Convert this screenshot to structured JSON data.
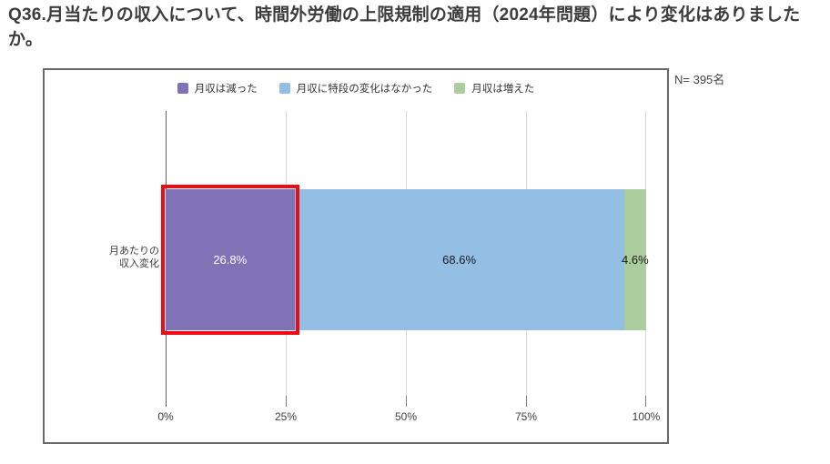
{
  "title": "Q36.月当たりの収入について、時間外労働の上限規制の適用（2024年問題）により変化はありましたか。",
  "sample_size": "N= 395名",
  "legend": {
    "items": [
      {
        "label": "月収は減った",
        "color": "#7f72b5"
      },
      {
        "label": "月収に特段の変化はなかった",
        "color": "#92bfe3"
      },
      {
        "label": "月収は増えた",
        "color": "#abcd9e"
      }
    ]
  },
  "chart_data": {
    "type": "bar",
    "orientation": "horizontal",
    "stacked": true,
    "title": "Q36.月当たりの収入について、時間外労働の上限規制の適用（2024年問題）により変化はありましたか。",
    "sample_size_n": 395,
    "categories": [
      "月あたりの収入変化"
    ],
    "category_display": "月あたりの\n収入変化",
    "series": [
      {
        "name": "月収は減った",
        "values": [
          26.8
        ],
        "data_label": "26.8%",
        "color": "#7f72b5"
      },
      {
        "name": "月収に特段の変化はなかった",
        "values": [
          68.6
        ],
        "data_label": "68.6%",
        "color": "#92bfe3"
      },
      {
        "name": "月収は増えた",
        "values": [
          4.6
        ],
        "data_label": "4.6%",
        "color": "#abcd9e"
      }
    ],
    "x_ticks": [
      "0%",
      "25%",
      "50%",
      "75%",
      "100%"
    ],
    "xlim": [
      0,
      100
    ],
    "grid": "vertical",
    "legend_position": "top",
    "annotation": {
      "highlight_target": "月収は減った",
      "highlight_color": "#ee0a12"
    }
  }
}
